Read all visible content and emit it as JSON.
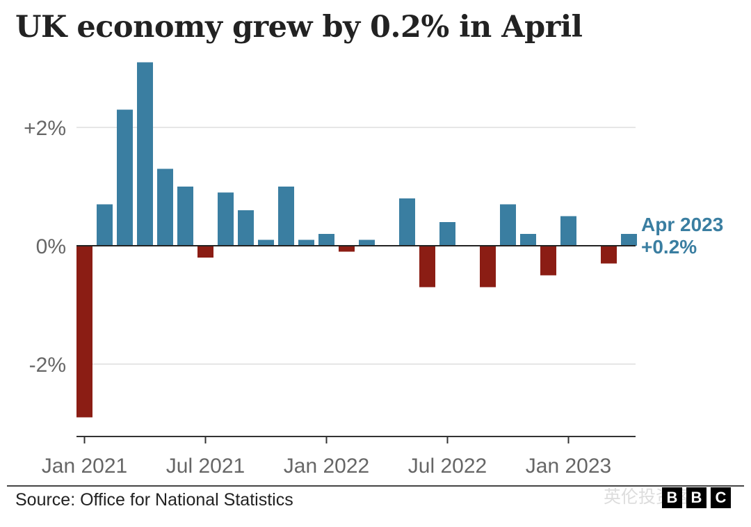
{
  "chart_data": {
    "type": "bar",
    "title": "UK economy grew by 0.2% in April",
    "xlabel": "",
    "ylabel": "",
    "ylim": [
      -3.0,
      3.1
    ],
    "grid": true,
    "yticks": [
      2,
      0,
      -2
    ],
    "ytick_labels": [
      "+2%",
      "0%",
      "-2%"
    ],
    "xtick_labels": [
      "Jan 2021",
      "Jul 2021",
      "Jan 2022",
      "Jul 2022",
      "Jan 2023"
    ],
    "xtick_months": [
      "2021-01",
      "2021-07",
      "2022-01",
      "2022-07",
      "2023-01"
    ],
    "categories": [
      "2021-01",
      "2021-02",
      "2021-03",
      "2021-04",
      "2021-05",
      "2021-06",
      "2021-07",
      "2021-08",
      "2021-09",
      "2021-10",
      "2021-11",
      "2021-12",
      "2022-01",
      "2022-02",
      "2022-03",
      "2022-04",
      "2022-05",
      "2022-06",
      "2022-07",
      "2022-08",
      "2022-09",
      "2022-10",
      "2022-11",
      "2022-12",
      "2023-01",
      "2023-02",
      "2023-03",
      "2023-04"
    ],
    "values": [
      -2.9,
      0.7,
      2.3,
      3.1,
      1.3,
      1.0,
      -0.2,
      0.9,
      0.6,
      0.1,
      1.0,
      0.1,
      0.2,
      -0.1,
      0.1,
      0.0,
      0.8,
      -0.7,
      0.4,
      0.0,
      -0.7,
      0.7,
      0.2,
      -0.5,
      0.5,
      0.0,
      -0.3,
      0.2
    ],
    "colors": {
      "positive": "#3a7ea1",
      "negative": "#8b1d14",
      "grid": "#dddddd",
      "axis": "#333333",
      "label": "#666666",
      "annotation": "#3a7ea1"
    },
    "annotation": {
      "line1": "Apr 2023",
      "line2": "+0.2%",
      "target": "2023-04"
    }
  },
  "footer": {
    "source": "Source: Office for National Statistics",
    "watermark": "英伦投资客",
    "logo_letters": [
      "B",
      "B",
      "C"
    ]
  }
}
